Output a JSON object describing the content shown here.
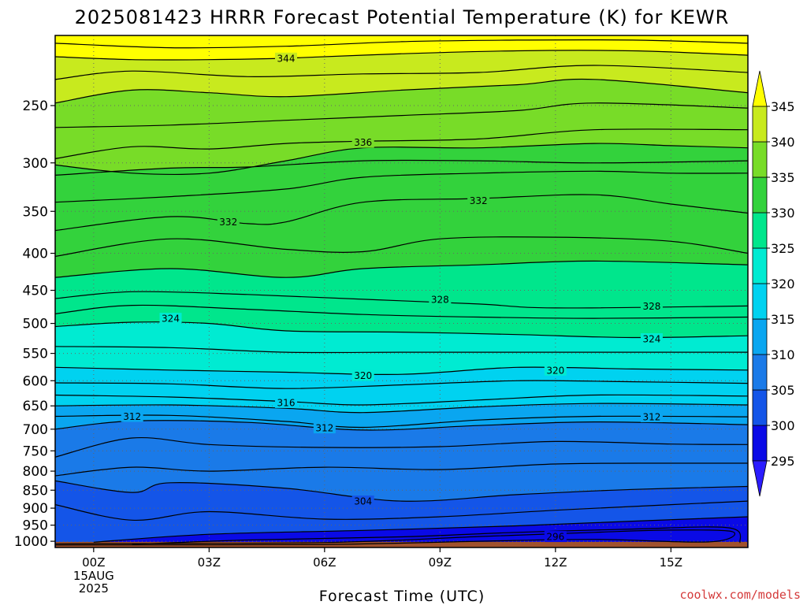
{
  "colors": {
    "ground": "#a0522d",
    "contour": "#000000",
    "grid": "#666666",
    "credit": "#d43a3a"
  },
  "chart_data": {
    "type": "heatmap",
    "title": "2025081423 HRRR Forecast Potential Temperature (K) for KEWR",
    "xlabel": "Forecast Time (UTC)",
    "ylabel": "",
    "credit": "coolwx.com/models",
    "x_ticks": [
      {
        "hour": 0,
        "label": "00Z",
        "sub": [
          "15AUG",
          "2025"
        ]
      },
      {
        "hour": 3,
        "label": "03Z"
      },
      {
        "hour": 6,
        "label": "06Z"
      },
      {
        "hour": 9,
        "label": "09Z"
      },
      {
        "hour": 12,
        "label": "12Z"
      },
      {
        "hour": 15,
        "label": "15Z"
      }
    ],
    "xlim": [
      -1,
      17
    ],
    "y_ticks": [
      250,
      300,
      350,
      400,
      450,
      500,
      550,
      600,
      650,
      700,
      750,
      800,
      850,
      900,
      950,
      1000
    ],
    "ylim": [
      1020,
      200
    ],
    "y_scale": "log-pressure (hPa)",
    "colorbar": {
      "levels": [
        295,
        300,
        305,
        310,
        315,
        320,
        325,
        330,
        335,
        340,
        345
      ],
      "colors": [
        "#2b1cff",
        "#0a0ae6",
        "#1455e8",
        "#1a7ae8",
        "#0aa6f0",
        "#00d2f0",
        "#00ebd2",
        "#00e68c",
        "#33d23c",
        "#78dc28",
        "#c8ea1e",
        "#ffff00"
      ]
    },
    "contour_labels": [
      {
        "value": 344,
        "hour": 5.0,
        "p": 215
      },
      {
        "value": 336,
        "hour": 7.0,
        "p": 281
      },
      {
        "value": 332,
        "hour": 3.5,
        "p": 362
      },
      {
        "value": 332,
        "hour": 10.0,
        "p": 338
      },
      {
        "value": 328,
        "hour": 9.0,
        "p": 463
      },
      {
        "value": 328,
        "hour": 14.5,
        "p": 473
      },
      {
        "value": 324,
        "hour": 2.0,
        "p": 492
      },
      {
        "value": 324,
        "hour": 14.5,
        "p": 525
      },
      {
        "value": 320,
        "hour": 7.0,
        "p": 590
      },
      {
        "value": 320,
        "hour": 12.0,
        "p": 580
      },
      {
        "value": 316,
        "hour": 5.0,
        "p": 643
      },
      {
        "value": 312,
        "hour": 1.0,
        "p": 672
      },
      {
        "value": 312,
        "hour": 6.0,
        "p": 697
      },
      {
        "value": 312,
        "hour": 14.5,
        "p": 673
      },
      {
        "value": 304,
        "hour": 7.0,
        "p": 880
      },
      {
        "value": 296,
        "hour": 12.0,
        "p": 985
      }
    ],
    "isotherms": [
      {
        "value": 296,
        "points": [
          [
            -1,
            1008
          ],
          [
            6,
            1004
          ],
          [
            10,
            985
          ],
          [
            13,
            972
          ],
          [
            15,
            965
          ],
          [
            16.6,
            970
          ],
          [
            16,
            1002
          ],
          [
            13,
            994
          ],
          [
            10,
            1000
          ],
          [
            6,
            1010
          ],
          [
            -1,
            1012
          ]
        ]
      },
      {
        "value": 298,
        "points": [
          [
            1,
            1010
          ],
          [
            4,
            996
          ],
          [
            8,
            986
          ],
          [
            11,
            972
          ],
          [
            14,
            962
          ],
          [
            16.5,
            958
          ],
          [
            16.8,
            1005
          ]
        ]
      },
      {
        "value": 300,
        "points": [
          [
            0,
            1003
          ],
          [
            3,
            978
          ],
          [
            7,
            966
          ],
          [
            11,
            952
          ],
          [
            14,
            938
          ],
          [
            17,
            925
          ]
        ]
      },
      {
        "value": 302,
        "points": [
          [
            -1,
            890
          ],
          [
            1,
            935
          ],
          [
            3,
            910
          ],
          [
            6,
            932
          ],
          [
            9,
            925
          ],
          [
            12,
            906
          ],
          [
            15,
            890
          ],
          [
            17,
            880
          ]
        ]
      },
      {
        "value": 304,
        "points": [
          [
            -1,
            825
          ],
          [
            1,
            856
          ],
          [
            2,
            830
          ],
          [
            5,
            845
          ],
          [
            8,
            880
          ],
          [
            11,
            862
          ],
          [
            14,
            848
          ],
          [
            17,
            840
          ]
        ]
      },
      {
        "value": 306,
        "points": [
          [
            -1,
            812
          ],
          [
            1,
            790
          ],
          [
            3,
            800
          ],
          [
            6,
            790
          ],
          [
            9,
            796
          ],
          [
            12,
            782
          ],
          [
            15,
            780
          ],
          [
            17,
            780
          ]
        ]
      },
      {
        "value": 308,
        "points": [
          [
            -1,
            765
          ],
          [
            1,
            720
          ],
          [
            3,
            735
          ],
          [
            6,
            742
          ],
          [
            9,
            740
          ],
          [
            12,
            728
          ],
          [
            15,
            734
          ],
          [
            17,
            735
          ]
        ]
      },
      {
        "value": 310,
        "points": [
          [
            -1,
            700
          ],
          [
            1,
            682
          ],
          [
            4,
            685
          ],
          [
            7,
            702
          ],
          [
            10,
            692
          ],
          [
            13,
            684
          ],
          [
            17,
            690
          ]
        ]
      },
      {
        "value": 312,
        "points": [
          [
            -1,
            672
          ],
          [
            2,
            670
          ],
          [
            5,
            683
          ],
          [
            7,
            696
          ],
          [
            10,
            680
          ],
          [
            13,
            672
          ],
          [
            17,
            673
          ]
        ]
      },
      {
        "value": 314,
        "points": [
          [
            -1,
            650
          ],
          [
            2,
            648
          ],
          [
            5,
            655
          ],
          [
            7,
            664
          ],
          [
            10,
            652
          ],
          [
            13,
            645
          ],
          [
            17,
            648
          ]
        ]
      },
      {
        "value": 316,
        "points": [
          [
            -1,
            628
          ],
          [
            2,
            632
          ],
          [
            5,
            641
          ],
          [
            7,
            648
          ],
          [
            10,
            638
          ],
          [
            13,
            628
          ],
          [
            17,
            630
          ]
        ]
      },
      {
        "value": 318,
        "points": [
          [
            -1,
            604
          ],
          [
            2,
            606
          ],
          [
            5,
            615
          ],
          [
            8,
            608
          ],
          [
            11,
            600
          ],
          [
            14,
            602
          ],
          [
            17,
            605
          ]
        ]
      },
      {
        "value": 320,
        "points": [
          [
            -1,
            575
          ],
          [
            2,
            580
          ],
          [
            5,
            584
          ],
          [
            8,
            588
          ],
          [
            11,
            575
          ],
          [
            14,
            578
          ],
          [
            17,
            580
          ]
        ]
      },
      {
        "value": 322,
        "points": [
          [
            -1,
            538
          ],
          [
            2,
            540
          ],
          [
            5,
            548
          ],
          [
            8,
            548
          ],
          [
            11,
            548
          ],
          [
            14,
            548
          ],
          [
            17,
            548
          ]
        ]
      },
      {
        "value": 324,
        "points": [
          [
            -1,
            505
          ],
          [
            1,
            498
          ],
          [
            3,
            500
          ],
          [
            5,
            512
          ],
          [
            8,
            514
          ],
          [
            11,
            518
          ],
          [
            14,
            523
          ],
          [
            17,
            520
          ]
        ]
      },
      {
        "value": 326,
        "points": [
          [
            -1,
            485
          ],
          [
            1,
            472
          ],
          [
            4,
            478
          ],
          [
            7,
            486
          ],
          [
            10,
            490
          ],
          [
            13,
            492
          ],
          [
            17,
            490
          ]
        ]
      },
      {
        "value": 328,
        "points": [
          [
            -1,
            462
          ],
          [
            1,
            452
          ],
          [
            4,
            456
          ],
          [
            7,
            463
          ],
          [
            10,
            470
          ],
          [
            12,
            476
          ],
          [
            17,
            473
          ]
        ]
      },
      {
        "value": 330,
        "points": [
          [
            -1,
            432
          ],
          [
            2,
            420
          ],
          [
            5,
            432
          ],
          [
            7,
            420
          ],
          [
            10,
            415
          ],
          [
            13,
            410
          ],
          [
            17,
            415
          ]
        ]
      },
      {
        "value": 331,
        "points": [
          [
            -1,
            404
          ],
          [
            2,
            382
          ],
          [
            5,
            395
          ],
          [
            7,
            398
          ],
          [
            9,
            382
          ],
          [
            12,
            380
          ],
          [
            15,
            385
          ],
          [
            17,
            400
          ]
        ]
      },
      {
        "value": 332,
        "points": [
          [
            -1,
            372
          ],
          [
            2,
            356
          ],
          [
            4,
            364
          ],
          [
            5,
            362
          ],
          [
            7,
            340
          ],
          [
            10,
            336
          ],
          [
            13,
            332
          ],
          [
            15,
            342
          ],
          [
            17,
            352
          ]
        ]
      },
      {
        "value": 333,
        "points": [
          [
            -1,
            340
          ],
          [
            2,
            334
          ],
          [
            5,
            326
          ],
          [
            7,
            314
          ],
          [
            10,
            310
          ],
          [
            13,
            308
          ],
          [
            15,
            310
          ],
          [
            17,
            310
          ]
        ]
      },
      {
        "value": 334,
        "points": [
          [
            -1,
            312
          ],
          [
            2,
            305
          ],
          [
            4,
            304
          ],
          [
            7,
            298
          ],
          [
            10,
            298
          ],
          [
            13,
            300
          ],
          [
            17,
            298
          ]
        ]
      },
      {
        "value": 335,
        "points": [
          [
            -1,
            302
          ],
          [
            1,
            310
          ],
          [
            3,
            310
          ],
          [
            5,
            298
          ],
          [
            7,
            286
          ],
          [
            10,
            286
          ],
          [
            13,
            282
          ],
          [
            15,
            284
          ],
          [
            17,
            286
          ]
        ]
      },
      {
        "value": 336,
        "points": [
          [
            -1,
            296
          ],
          [
            1,
            285
          ],
          [
            3,
            287
          ],
          [
            5,
            282
          ],
          [
            7,
            280
          ],
          [
            10,
            278
          ],
          [
            13,
            270
          ],
          [
            17,
            270
          ]
        ]
      },
      {
        "value": 338,
        "points": [
          [
            -1,
            268
          ],
          [
            2,
            266
          ],
          [
            5,
            262
          ],
          [
            8,
            258
          ],
          [
            11,
            254
          ],
          [
            13,
            248
          ],
          [
            17,
            252
          ]
        ]
      },
      {
        "value": 340,
        "points": [
          [
            -1,
            248
          ],
          [
            1,
            238
          ],
          [
            3,
            240
          ],
          [
            5,
            243
          ],
          [
            8,
            238
          ],
          [
            11,
            234
          ],
          [
            13,
            230
          ],
          [
            17,
            240
          ]
        ]
      },
      {
        "value": 342,
        "points": [
          [
            -1,
            230
          ],
          [
            1,
            224
          ],
          [
            4,
            228
          ],
          [
            7,
            226
          ],
          [
            10,
            225
          ],
          [
            13,
            220
          ],
          [
            17,
            225
          ]
        ]
      },
      {
        "value": 344,
        "points": [
          [
            -1,
            214
          ],
          [
            1,
            216
          ],
          [
            3,
            216
          ],
          [
            5,
            215
          ],
          [
            8,
            212
          ],
          [
            11,
            210
          ],
          [
            14,
            210
          ],
          [
            17,
            213
          ]
        ]
      },
      {
        "value": 346,
        "points": [
          [
            -1,
            205
          ],
          [
            2,
            208
          ],
          [
            5,
            207
          ],
          [
            8,
            204
          ],
          [
            11,
            203
          ],
          [
            14,
            203
          ],
          [
            17,
            205
          ]
        ]
      }
    ]
  }
}
